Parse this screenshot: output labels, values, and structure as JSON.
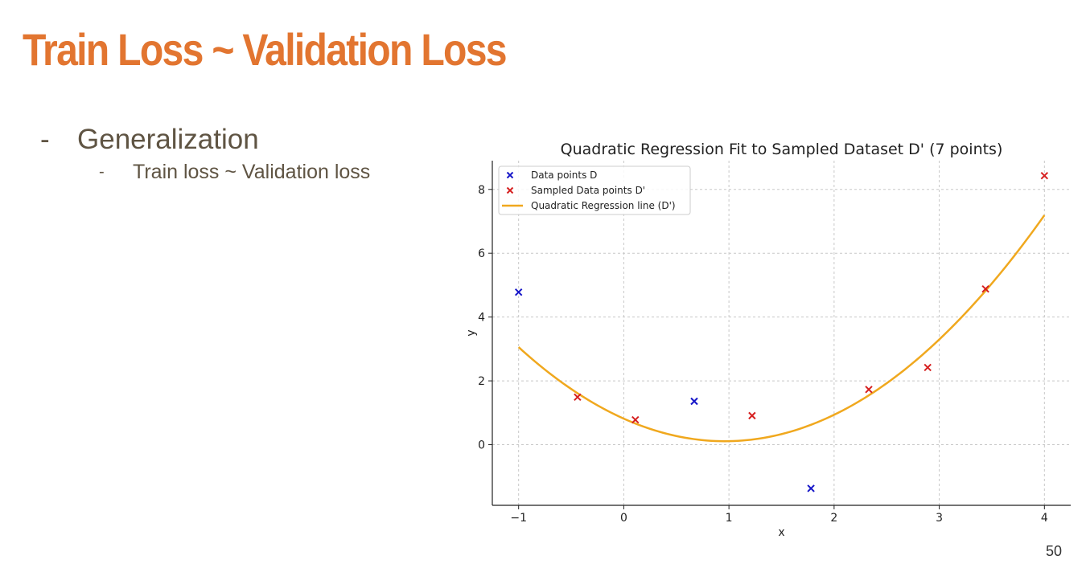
{
  "slide": {
    "title": "Train Loss ~ Validation Loss",
    "bullet1": "Generalization",
    "bullet2": "Train loss ~ Validation loss",
    "dash1": "-",
    "dash2": "-",
    "page_number": "50"
  },
  "colors": {
    "title": "#e27530",
    "data_points": "#1616c8",
    "sampled_points": "#d62020",
    "regression_line": "#f0a81e"
  },
  "chart_data": {
    "type": "scatter",
    "title": "Quadratic Regression Fit to Sampled Dataset D' (7 points)",
    "xlabel": "x",
    "ylabel": "y",
    "xlim": [
      -1.25,
      4.25
    ],
    "ylim": [
      -1.9,
      8.9
    ],
    "xticks": [
      -1,
      0,
      1,
      2,
      3,
      4
    ],
    "xtick_labels": [
      "−1",
      "0",
      "1",
      "2",
      "3",
      "4"
    ],
    "yticks": [
      0,
      2,
      4,
      6,
      8
    ],
    "ytick_labels": [
      "0",
      "2",
      "4",
      "6",
      "8"
    ],
    "grid": true,
    "legend_position": "top-left",
    "legend": [
      "Data points D",
      "Sampled Data points D'",
      "Quadratic Regression line (D')"
    ],
    "series": [
      {
        "name": "Data points D",
        "marker": "x",
        "points": [
          [
            -1.0,
            4.78
          ],
          [
            0.67,
            1.36
          ],
          [
            1.78,
            -1.37
          ]
        ]
      },
      {
        "name": "Sampled Data points D'",
        "marker": "x",
        "points": [
          [
            -0.44,
            1.49
          ],
          [
            0.11,
            0.78
          ],
          [
            1.22,
            0.91
          ],
          [
            2.33,
            1.73
          ],
          [
            2.89,
            2.42
          ],
          [
            3.44,
            4.88
          ],
          [
            4.0,
            8.43
          ]
        ]
      },
      {
        "name": "Quadratic Regression line (D')",
        "type": "line",
        "coefficients": {
          "a": 0.7667,
          "b": -1.4733,
          "c": 0.8167
        },
        "x_range": [
          -1.0,
          4.0
        ]
      }
    ]
  }
}
